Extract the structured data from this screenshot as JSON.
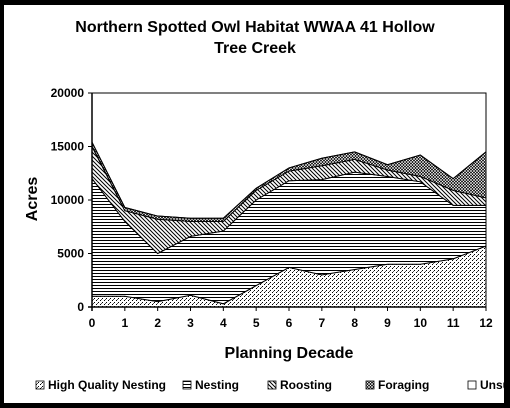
{
  "chart_data": {
    "type": "area",
    "stacked": true,
    "title_lines": [
      "Northern Spotted Owl Habitat WWAA 41 Hollow",
      "Tree Creek"
    ],
    "xlabel": "Planning Decade",
    "ylabel": "Acres",
    "x": [
      0,
      1,
      2,
      3,
      4,
      5,
      6,
      7,
      8,
      9,
      10,
      11,
      12
    ],
    "ylim": [
      0,
      20000
    ],
    "yticks": [
      0,
      5000,
      10000,
      15000,
      20000
    ],
    "ytick_labels": [
      "0",
      "5000",
      "10000",
      "15000",
      "20000"
    ],
    "xtick_labels": [
      "0",
      "1",
      "2",
      "3",
      "4",
      "5",
      "6",
      "7",
      "8",
      "9",
      "10",
      "11",
      "12"
    ],
    "legend_position": "bottom",
    "series": [
      {
        "name": "High Quality Nesting",
        "pattern": "diagonal-dots",
        "values": [
          1000,
          1000,
          500,
          1100,
          300,
          2000,
          3700,
          3000,
          3500,
          4000,
          4000,
          4500,
          5700
        ]
      },
      {
        "name": "Nesting",
        "pattern": "horizontal-lines",
        "values": [
          11000,
          7000,
          4500,
          5500,
          6800,
          8000,
          8100,
          8900,
          9100,
          8200,
          7700,
          5000,
          3800
        ]
      },
      {
        "name": "Roosting",
        "pattern": "diagonal-lines",
        "values": [
          3000,
          1000,
          3200,
          1400,
          900,
          900,
          900,
          1300,
          1200,
          600,
          500,
          1400,
          700
        ]
      },
      {
        "name": "Foraging",
        "pattern": "cross-hatch",
        "values": [
          400,
          300,
          300,
          300,
          300,
          200,
          300,
          700,
          700,
          500,
          2000,
          1100,
          4300
        ]
      },
      {
        "name": "Unsuitable",
        "pattern": "blank",
        "values": [
          0,
          0,
          0,
          0,
          0,
          0,
          0,
          0,
          0,
          0,
          0,
          0,
          0
        ]
      }
    ]
  }
}
